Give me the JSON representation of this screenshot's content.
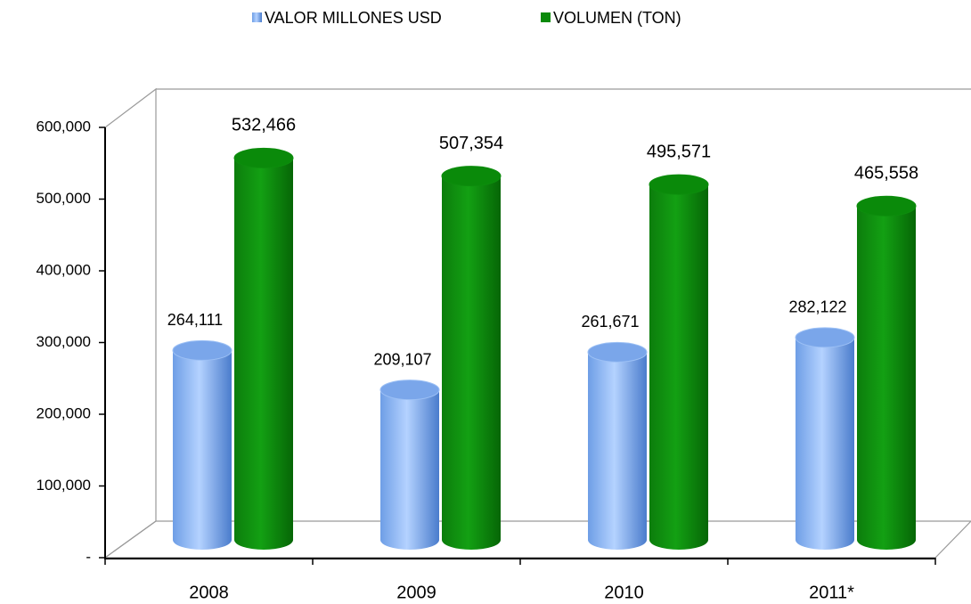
{
  "chart_data": {
    "type": "bar",
    "categories": [
      "2008",
      "2009",
      "2010",
      "2011*"
    ],
    "series": [
      {
        "name": "VALOR MILLONES USD",
        "color": "#7aa6ea",
        "values": [
          264111,
          209107,
          261671,
          282122
        ],
        "value_labels": [
          "264,111",
          "209,107",
          "261,671",
          "282,122"
        ]
      },
      {
        "name": "VOLUMEN (TON)",
        "color": "#0a8a0a",
        "values": [
          532466,
          507354,
          495571,
          465558
        ],
        "value_labels": [
          "532,466",
          "507,354",
          "495,571",
          "465,558"
        ]
      }
    ],
    "ylim": [
      0,
      600000
    ],
    "yticks": [
      {
        "value": 0,
        "label": "-"
      },
      {
        "value": 100000,
        "label": "100,000"
      },
      {
        "value": 200000,
        "label": "200,000"
      },
      {
        "value": 300000,
        "label": "300,000"
      },
      {
        "value": 400000,
        "label": "400,000"
      },
      {
        "value": 500000,
        "label": "500,000"
      },
      {
        "value": 600000,
        "label": "600,000"
      }
    ],
    "legend": "top"
  }
}
